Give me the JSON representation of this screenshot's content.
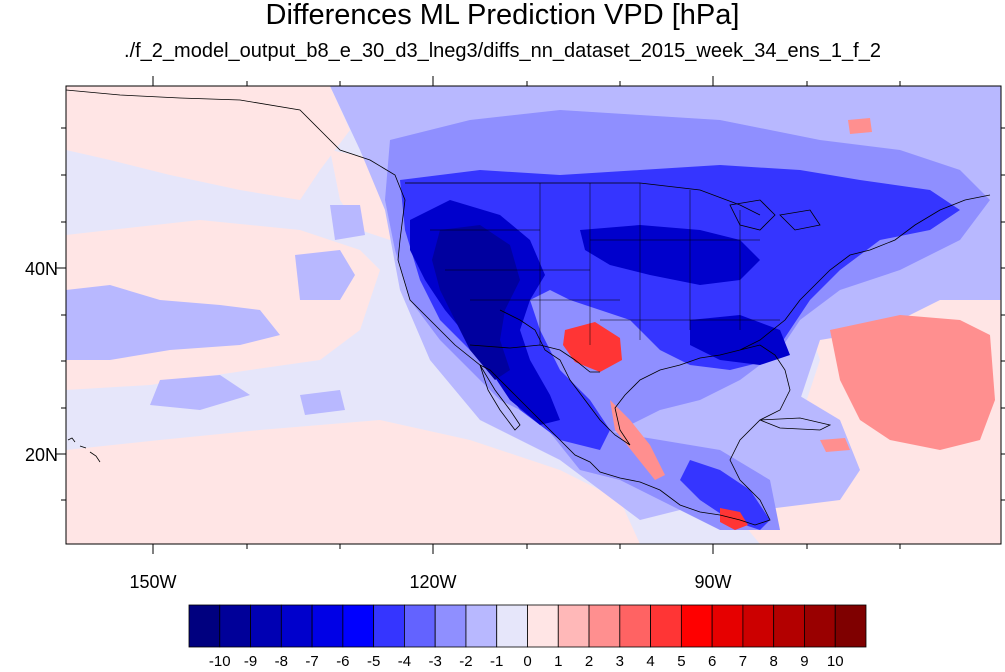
{
  "title": "Differences ML Prediction VPD [hPa]",
  "subtitle": "./f_2_model_output_b8_e_30_d3_lneg3/diffs_nn_dataset_2015_week_34_ens_1_f_2",
  "lat_labels": [
    "40N",
    "20N"
  ],
  "lon_labels": [
    "150W",
    "120W",
    "90W"
  ],
  "colorbar": {
    "labels": [
      "-10",
      "-9",
      "-8",
      "-7",
      "-6",
      "-5",
      "-4",
      "-3",
      "-2",
      "-1",
      "0",
      "1",
      "2",
      "3",
      "4",
      "5",
      "6",
      "7",
      "8",
      "9",
      "10"
    ],
    "colors": [
      "#00007f",
      "#000099",
      "#0000b3",
      "#0000cc",
      "#0000e6",
      "#0000ff",
      "#3535ff",
      "#6363ff",
      "#8f8fff",
      "#b8b8ff",
      "#e6e6fa",
      "#ffe5e5",
      "#ffb8b8",
      "#ff8f8f",
      "#ff6363",
      "#ff3535",
      "#ff0000",
      "#e60000",
      "#cc0000",
      "#b30000",
      "#990000",
      "#7f0000"
    ]
  },
  "map_colors": {
    "ocean_background": "#e6e6fa",
    "light_pink": "#ffe5e5",
    "light_blue": "#b8b8ff",
    "mid_blue": "#8f8fff",
    "blue": "#3535ff",
    "deep_blue": "#0000cc",
    "darkest_blue": "#00009f",
    "red": "#ff3535",
    "salmon": "#ff8f8f"
  }
}
